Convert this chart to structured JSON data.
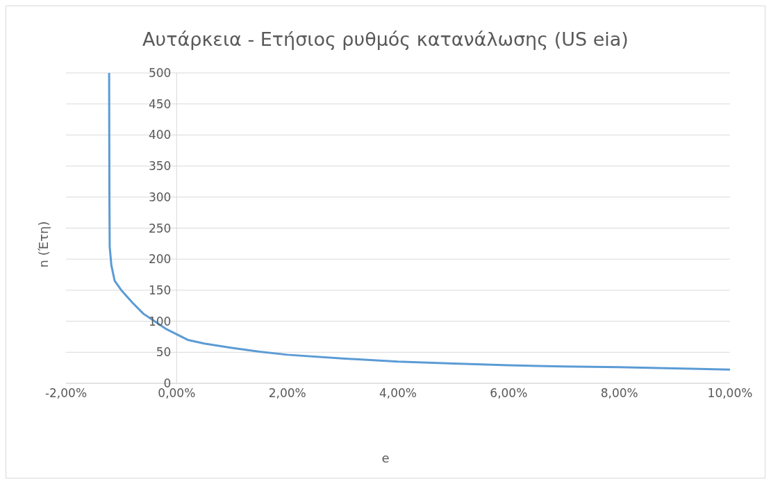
{
  "chart_data": {
    "type": "line",
    "title": "Αυτάρκεια - Ετήσιος ρυθμός κατανάλωσης (US eia)",
    "xlabel": "e",
    "ylabel": "n (Έτη)",
    "x": [
      -1.22,
      -1.218,
      -1.215,
      -1.21,
      -1.18,
      -1.12,
      -1.0,
      -0.8,
      -0.6,
      -0.4,
      -0.2,
      0,
      0.2,
      0.5,
      1,
      1.5,
      2,
      3,
      4,
      5,
      6,
      7,
      8,
      9,
      10
    ],
    "series": [
      {
        "color": "#5b9bd5",
        "values": [
          500,
          400,
          300,
          220,
          190,
          165,
          150,
          130,
          112,
          100,
          88,
          79,
          70,
          64,
          57,
          51,
          46,
          40,
          35,
          32,
          29,
          27,
          26,
          24,
          22
        ]
      }
    ],
    "xlim": [
      -2,
      10
    ],
    "xticks": [
      {
        "value": -2,
        "label": "-2,00%"
      },
      {
        "value": 0,
        "label": "0,00%"
      },
      {
        "value": 2,
        "label": "2,00%"
      },
      {
        "value": 4,
        "label": "4,00%"
      },
      {
        "value": 6,
        "label": "6,00%"
      },
      {
        "value": 8,
        "label": "8,00%"
      },
      {
        "value": 10,
        "label": "10,00%"
      }
    ],
    "ylim": [
      0,
      500
    ],
    "yticks": [
      0,
      50,
      100,
      150,
      200,
      250,
      300,
      350,
      400,
      450,
      500
    ],
    "grid": "y",
    "legend": false,
    "marker": "none",
    "line_style": "solid"
  }
}
